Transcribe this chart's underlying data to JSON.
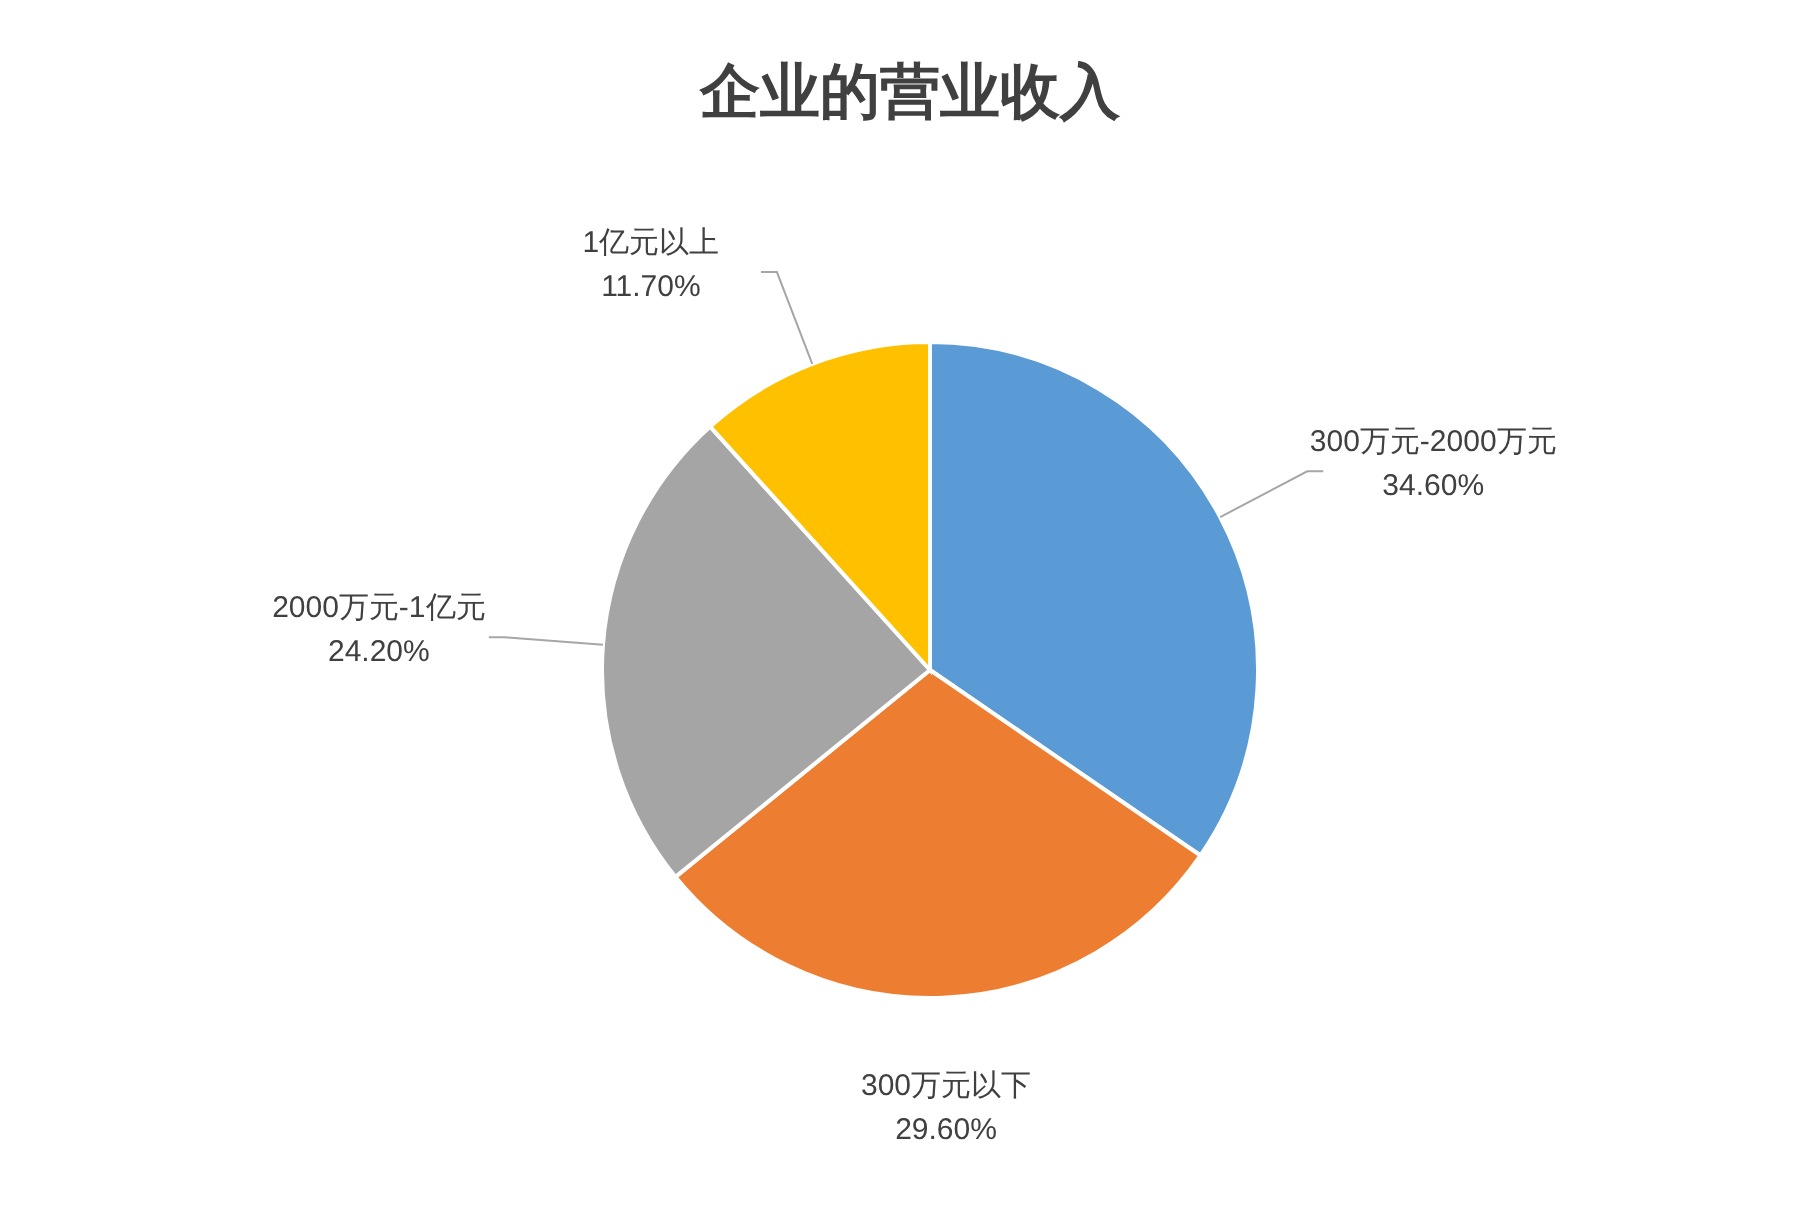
{
  "chart_data": {
    "type": "pie",
    "title": "企业的营业收入",
    "categories": [
      "300万元-2000万元",
      "300万元以下",
      "2000万元-1亿元",
      "1亿元以上"
    ],
    "values": [
      34.6,
      29.6,
      24.2,
      11.7
    ],
    "colors": [
      "#5b9bd5",
      "#ed7d31",
      "#a5a5a5",
      "#ffc000"
    ],
    "value_labels": [
      "34.60%",
      "29.60%",
      "24.20%",
      "11.70%"
    ]
  }
}
